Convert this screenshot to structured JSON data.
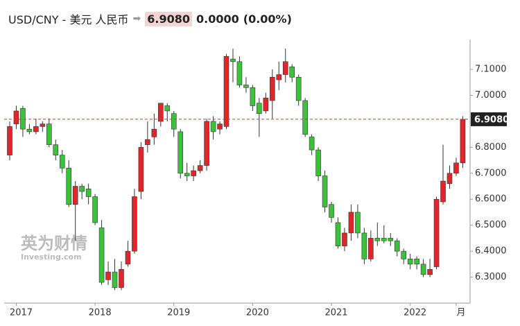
{
  "header": {
    "symbol": "USD/CNY - 美元 人民币",
    "change": "0.0000",
    "change_pct": "(0.00%)"
  },
  "watermark": {
    "cn": "英为财情",
    "en": "Investing.com"
  },
  "chart_data": {
    "type": "candlestick",
    "last_price": {
      "value": 6.908,
      "label": "6.9080"
    },
    "up_color": "#e0262b",
    "down_color": "#3cc13b",
    "last_line_color": "#c0392b",
    "ylim": [
      6.2,
      7.215
    ],
    "yticks": [
      {
        "value": 6.3,
        "label": "6.3000"
      },
      {
        "value": 6.4,
        "label": "6.4000"
      },
      {
        "value": 6.5,
        "label": "6.5000"
      },
      {
        "value": 6.6,
        "label": "6.6000"
      },
      {
        "value": 6.7,
        "label": "6.7000"
      },
      {
        "value": 6.8,
        "label": "6.8000"
      },
      {
        "value": 7.0,
        "label": "7.0000"
      },
      {
        "value": 7.1,
        "label": "7.1000"
      }
    ],
    "categories": [
      null,
      "2017",
      null,
      null,
      null,
      null,
      null,
      null,
      null,
      null,
      null,
      null,
      null,
      "2018",
      null,
      null,
      null,
      null,
      null,
      null,
      null,
      null,
      null,
      null,
      null,
      "2019",
      null,
      null,
      null,
      null,
      null,
      null,
      null,
      null,
      null,
      null,
      null,
      "2020",
      null,
      null,
      null,
      null,
      null,
      null,
      null,
      null,
      null,
      null,
      null,
      "2021",
      null,
      null,
      null,
      null,
      null,
      null,
      null,
      null,
      null,
      null,
      null,
      "2022",
      null,
      null,
      null,
      null,
      null,
      null,
      "月",
      null
    ],
    "open": [
      6.77,
      6.89,
      6.95,
      6.87,
      6.86,
      6.88,
      6.89,
      6.81,
      6.77,
      6.72,
      6.58,
      6.65,
      6.64,
      6.61,
      6.49,
      6.29,
      6.32,
      6.26,
      6.35,
      6.4,
      6.63,
      6.81,
      6.84,
      6.9,
      6.96,
      6.93,
      6.86,
      6.7,
      6.69,
      6.71,
      6.73,
      6.9,
      6.87,
      6.88,
      7.14,
      7.13,
      7.04,
      7.03,
      6.97,
      6.94,
      6.98,
      7.06,
      7.08,
      7.11,
      7.07,
      6.98,
      6.84,
      6.79,
      6.69,
      6.58,
      6.51,
      6.42,
      6.47,
      6.55,
      6.47,
      6.37,
      6.45,
      6.45,
      6.45,
      6.44,
      6.4,
      6.37,
      6.37,
      6.35,
      6.31,
      6.34,
      6.59,
      6.66,
      6.7,
      6.74
    ],
    "high": [
      6.9,
      6.96,
      6.96,
      6.89,
      6.91,
      6.9,
      6.91,
      6.83,
      6.79,
      6.75,
      6.67,
      6.66,
      6.66,
      6.62,
      6.52,
      6.36,
      6.37,
      6.36,
      6.44,
      6.64,
      6.82,
      6.9,
      6.93,
      6.97,
      6.97,
      6.94,
      6.87,
      6.74,
      6.73,
      6.75,
      6.91,
      6.92,
      6.9,
      7.16,
      7.18,
      7.15,
      7.07,
      7.04,
      6.99,
      7.01,
      7.1,
      7.13,
      7.18,
      7.12,
      7.08,
      6.99,
      6.85,
      6.8,
      6.71,
      6.59,
      6.53,
      6.49,
      6.58,
      6.58,
      6.49,
      6.48,
      6.51,
      6.5,
      6.47,
      6.45,
      6.41,
      6.39,
      6.38,
      6.37,
      6.37,
      6.61,
      6.81,
      6.73,
      6.76,
      6.92
    ],
    "low": [
      6.75,
      6.87,
      6.84,
      6.85,
      6.85,
      6.86,
      6.8,
      6.75,
      6.7,
      6.57,
      6.44,
      6.6,
      6.58,
      6.5,
      6.27,
      6.27,
      6.25,
      6.25,
      6.34,
      6.39,
      6.6,
      6.78,
      6.81,
      6.88,
      6.9,
      6.84,
      6.68,
      6.67,
      6.67,
      6.7,
      6.71,
      6.83,
      6.85,
      6.87,
      7.05,
      7.03,
      7.01,
      6.94,
      6.84,
      6.93,
      6.91,
      7.02,
      7.05,
      7.05,
      6.96,
      6.84,
      6.77,
      6.67,
      6.55,
      6.51,
      6.41,
      6.4,
      6.44,
      6.45,
      6.35,
      6.36,
      6.42,
      6.43,
      6.42,
      6.38,
      6.35,
      6.33,
      6.33,
      6.3,
      6.3,
      6.33,
      6.58,
      6.64,
      6.69,
      6.72
    ],
    "close": [
      6.88,
      6.94,
      6.87,
      6.86,
      6.88,
      6.89,
      6.81,
      6.77,
      6.72,
      6.58,
      6.65,
      6.63,
      6.61,
      6.51,
      6.28,
      6.32,
      6.26,
      6.33,
      6.4,
      6.61,
      6.8,
      6.83,
      6.87,
      6.97,
      6.94,
      6.87,
      6.7,
      6.69,
      6.71,
      6.73,
      6.9,
      6.86,
      6.89,
      7.15,
      7.13,
      7.04,
      7.03,
      6.96,
      6.93,
      6.99,
      7.07,
      7.08,
      7.13,
      7.07,
      6.98,
      6.85,
      6.79,
      6.69,
      6.57,
      6.53,
      6.42,
      6.47,
      6.55,
      6.47,
      6.37,
      6.45,
      6.44,
      6.44,
      6.44,
      6.4,
      6.37,
      6.35,
      6.35,
      6.31,
      6.33,
      6.6,
      6.67,
      6.7,
      6.74,
      6.908
    ]
  }
}
